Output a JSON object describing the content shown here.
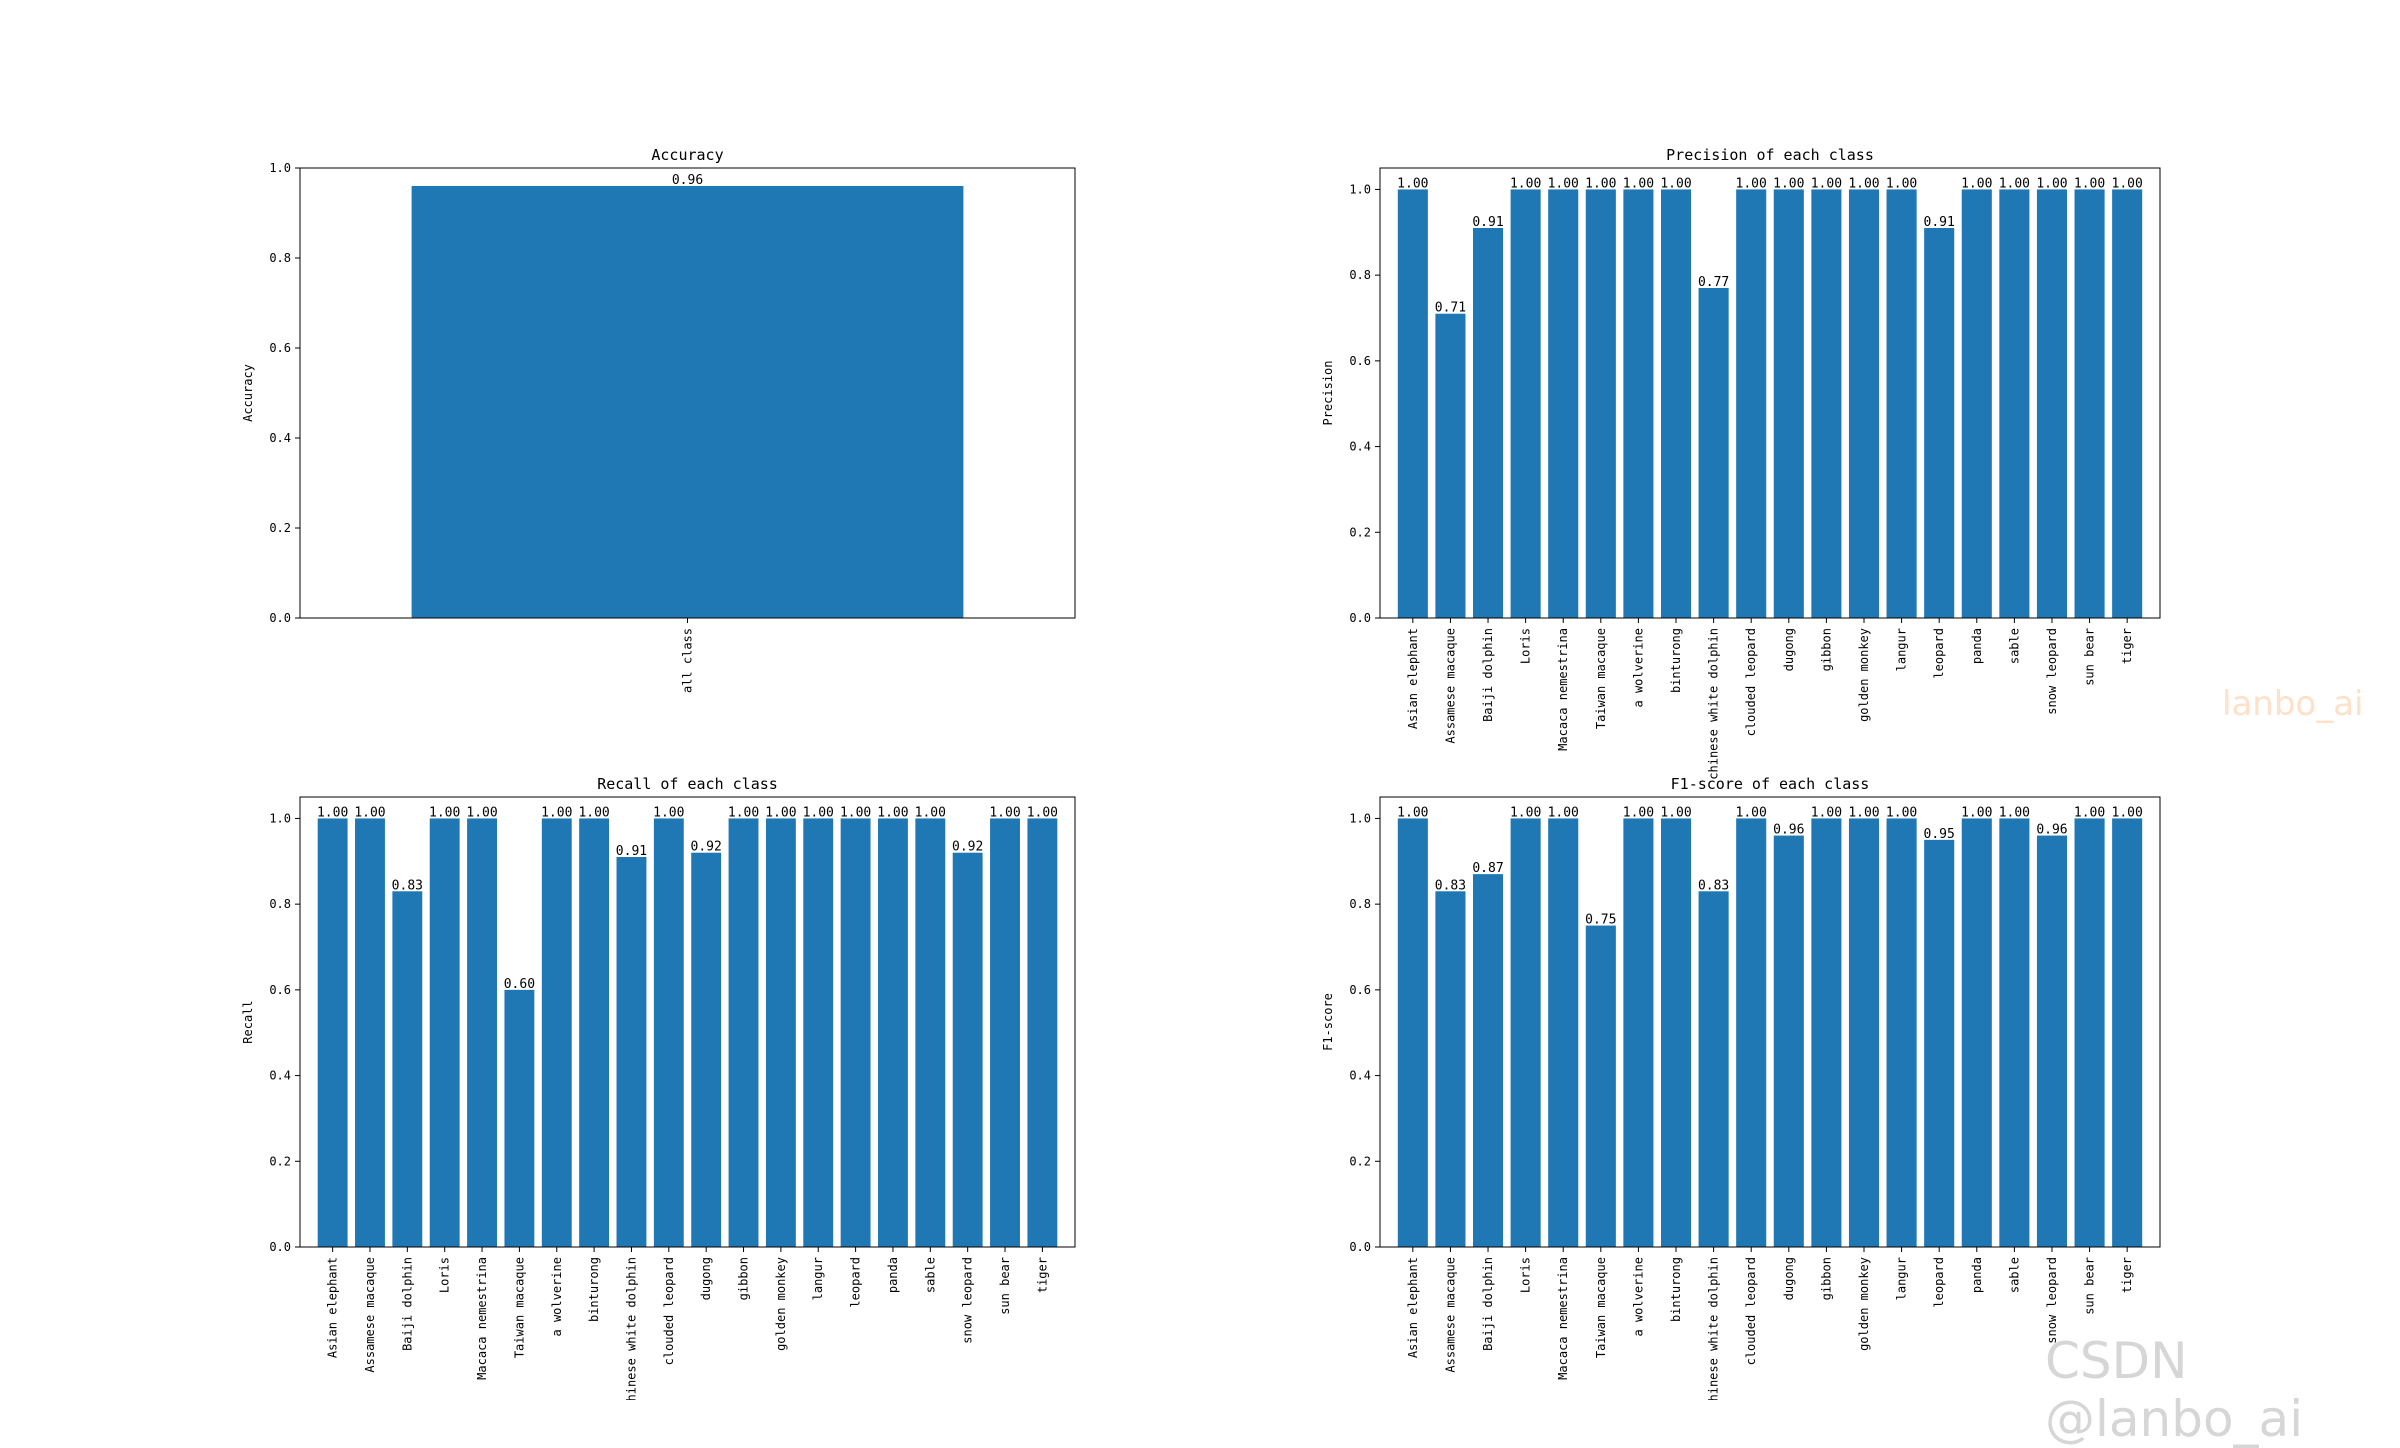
{
  "classes": [
    "Asian elephant",
    "Assamese macaque",
    "Baiji dolphin",
    "Loris",
    "Macaca nemestrina",
    "Taiwan macaque",
    "a wolverine",
    "binturong",
    "chinese white dolphin",
    "clouded leopard",
    "dugong",
    "gibbon",
    "golden monkey",
    "langur",
    "leopard",
    "panda",
    "sable",
    "snow leopard",
    "sun bear",
    "tiger"
  ],
  "chart_data": [
    {
      "type": "bar",
      "title": "Accuracy",
      "ylabel": "Accuracy",
      "xlabel": "",
      "ylim": [
        0,
        1.0
      ],
      "yticks": [
        "0.0",
        "0.2",
        "0.4",
        "0.6",
        "0.8",
        "1.0"
      ],
      "categories": [
        "all class"
      ],
      "values": [
        0.96
      ],
      "value_labels": [
        "0.96"
      ],
      "color": "#1f77b4"
    },
    {
      "type": "bar",
      "title": "Precision of each class",
      "ylabel": "Precision",
      "xlabel": "",
      "ylim": [
        0,
        1.05
      ],
      "yticks": [
        "0.0",
        "0.2",
        "0.4",
        "0.6",
        "0.8",
        "1.0"
      ],
      "categories_ref": "classes",
      "values": [
        1.0,
        0.71,
        0.91,
        1.0,
        1.0,
        1.0,
        1.0,
        1.0,
        0.77,
        1.0,
        1.0,
        1.0,
        1.0,
        1.0,
        0.91,
        1.0,
        1.0,
        1.0,
        1.0,
        1.0
      ],
      "value_labels": [
        "1.00",
        "0.71",
        "0.91",
        "1.00",
        "1.00",
        "1.00",
        "1.00",
        "1.00",
        "0.77",
        "1.00",
        "1.00",
        "1.00",
        "1.00",
        "1.00",
        "0.91",
        "1.00",
        "1.00",
        "1.00",
        "1.00",
        "1.00"
      ],
      "color": "#1f77b4"
    },
    {
      "type": "bar",
      "title": "Recall of each class",
      "ylabel": "Recall",
      "xlabel": "",
      "ylim": [
        0,
        1.05
      ],
      "yticks": [
        "0.0",
        "0.2",
        "0.4",
        "0.6",
        "0.8",
        "1.0"
      ],
      "categories_ref": "classes",
      "values": [
        1.0,
        1.0,
        0.83,
        1.0,
        1.0,
        0.6,
        1.0,
        1.0,
        0.91,
        1.0,
        0.92,
        1.0,
        1.0,
        1.0,
        1.0,
        1.0,
        1.0,
        0.92,
        1.0,
        1.0
      ],
      "value_labels": [
        "1.00",
        "1.00",
        "0.83",
        "1.00",
        "1.00",
        "0.60",
        "1.00",
        "1.00",
        "0.91",
        "1.00",
        "0.92",
        "1.00",
        "1.00",
        "1.00",
        "1.00",
        "1.00",
        "1.00",
        "0.92",
        "1.00",
        "1.00"
      ],
      "color": "#1f77b4"
    },
    {
      "type": "bar",
      "title": "F1-score of each class",
      "ylabel": "F1-score",
      "xlabel": "",
      "ylim": [
        0,
        1.05
      ],
      "yticks": [
        "0.0",
        "0.2",
        "0.4",
        "0.6",
        "0.8",
        "1.0"
      ],
      "categories_ref": "classes",
      "values": [
        1.0,
        0.83,
        0.87,
        1.0,
        1.0,
        0.75,
        1.0,
        1.0,
        0.83,
        1.0,
        0.96,
        1.0,
        1.0,
        1.0,
        0.95,
        1.0,
        1.0,
        0.96,
        1.0,
        1.0
      ],
      "value_labels": [
        "1.00",
        "0.83",
        "0.87",
        "1.00",
        "1.00",
        "0.75",
        "1.00",
        "1.00",
        "0.83",
        "1.00",
        "0.96",
        "1.00",
        "1.00",
        "1.00",
        "0.95",
        "1.00",
        "1.00",
        "0.96",
        "1.00",
        "1.00"
      ],
      "color": "#1f77b4"
    }
  ],
  "watermarks": {
    "mid": "lanbo_ai",
    "corner": "CSDN @lanbo_ai"
  }
}
